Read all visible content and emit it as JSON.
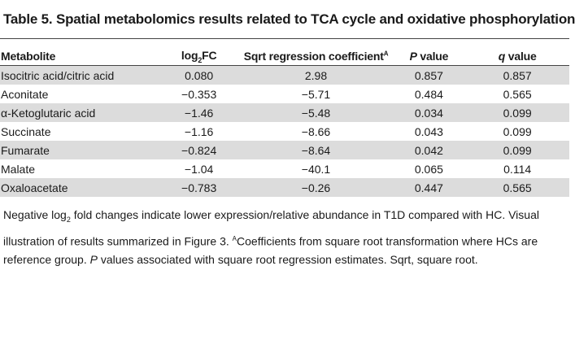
{
  "title": "Table 5. Spatial metabolomics results related to TCA cycle and oxidative phosphorylation",
  "headers": {
    "metabolite": "Metabolite",
    "log_prefix": "log",
    "log_sub": "2",
    "log_suffix": "FC",
    "sqrt": "Sqrt regression coefficient",
    "sqrt_sup": "A",
    "p_letter": "P",
    "p_suffix": " value",
    "q_letter": "q",
    "q_suffix": " value"
  },
  "rows": [
    {
      "metabolite": "Isocitric acid/citric acid",
      "log2fc": "0.080",
      "sqrt": "2.98",
      "p": "0.857",
      "q": "0.857"
    },
    {
      "metabolite": "Aconitate",
      "log2fc": "−0.353",
      "sqrt": "−5.71",
      "p": "0.484",
      "q": "0.565"
    },
    {
      "metabolite": "α-Ketoglutaric acid",
      "log2fc": "−1.46",
      "sqrt": "−5.48",
      "p": "0.034",
      "q": "0.099"
    },
    {
      "metabolite": "Succinate",
      "log2fc": "−1.16",
      "sqrt": "−8.66",
      "p": "0.043",
      "q": "0.099"
    },
    {
      "metabolite": "Fumarate",
      "log2fc": "−0.824",
      "sqrt": "−8.64",
      "p": "0.042",
      "q": "0.099"
    },
    {
      "metabolite": "Malate",
      "log2fc": "−1.04",
      "sqrt": "−40.1",
      "p": "0.065",
      "q": "0.114"
    },
    {
      "metabolite": "Oxaloacetate",
      "log2fc": "−0.783",
      "sqrt": "−0.26",
      "p": "0.447",
      "q": "0.565"
    }
  ],
  "footnote": {
    "part1": "Negative log",
    "part1_sub": "2",
    "part2": " fold changes indicate lower expression/relative abundance in T1D compared with HC. Visual illustration of results summarized in Figure 3. ",
    "part3_sup": "A",
    "part4": "Coefficients from square root transformation where HCs are reference group. ",
    "part5_italic": "P",
    "part6": " values associated with square root regression estimates. Sqrt, square root."
  }
}
